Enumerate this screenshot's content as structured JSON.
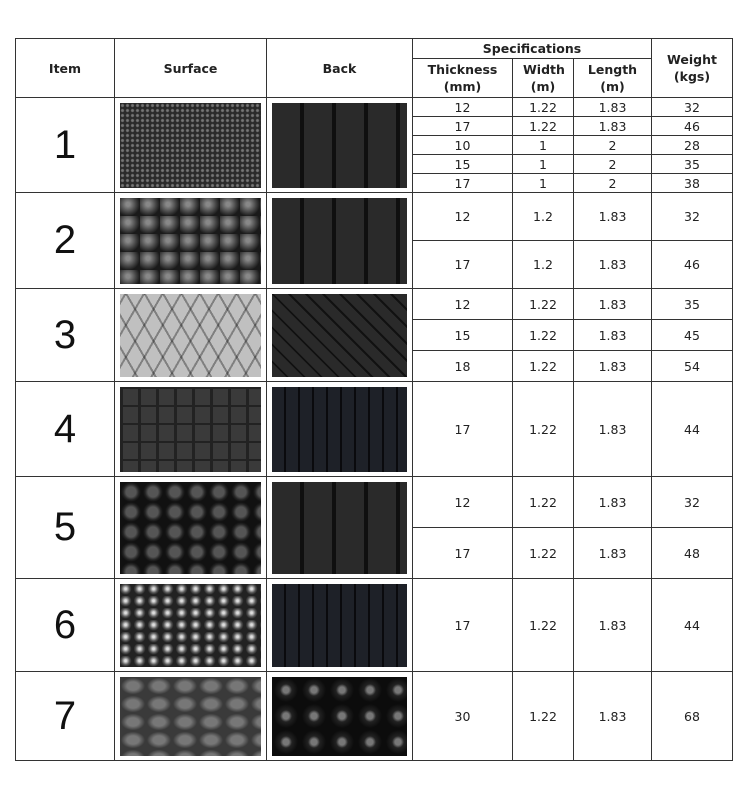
{
  "headers": {
    "item": "Item",
    "surface": "Surface",
    "back": "Back",
    "specifications": "Specifications",
    "thickness": "Thickness (mm)",
    "width": "Width (m)",
    "length": "Length (m)",
    "weight": "Weight (kgs)"
  },
  "items": [
    {
      "item": "1",
      "surface_image": "studded-diamond-surface",
      "back_image": "grooved-back",
      "specs": [
        [
          "12",
          "1.22",
          "1.83",
          "32"
        ],
        [
          "17",
          "1.22",
          "1.83",
          "46"
        ],
        [
          "10",
          "1",
          "2",
          "28"
        ],
        [
          "15",
          "1",
          "2",
          "35"
        ],
        [
          "17",
          "1",
          "2",
          "38"
        ]
      ]
    },
    {
      "item": "2",
      "surface_image": "hammer-surface",
      "back_image": "grooved-back",
      "specs": [
        [
          "12",
          "1.2",
          "1.83",
          "32"
        ],
        [
          "17",
          "1.2",
          "1.83",
          "46"
        ]
      ]
    },
    {
      "item": "3",
      "surface_image": "diamond-surface",
      "back_image": "diamond-back",
      "specs": [
        [
          "12",
          "1.22",
          "1.83",
          "35"
        ],
        [
          "15",
          "1.22",
          "1.83",
          "45"
        ],
        [
          "18",
          "1.22",
          "1.83",
          "54"
        ]
      ]
    },
    {
      "item": "4",
      "surface_image": "square-block-surface",
      "back_image": "fine-groove-back",
      "specs": [
        [
          "17",
          "1.22",
          "1.83",
          "44"
        ]
      ]
    },
    {
      "item": "5",
      "surface_image": "hexagon-surface",
      "back_image": "grooved-back",
      "specs": [
        [
          "12",
          "1.22",
          "1.83",
          "32"
        ],
        [
          "17",
          "1.22",
          "1.83",
          "48"
        ]
      ]
    },
    {
      "item": "6",
      "surface_image": "dimpled-surface",
      "back_image": "fine-groove-back",
      "specs": [
        [
          "17",
          "1.22",
          "1.83",
          "44"
        ]
      ]
    },
    {
      "item": "7",
      "surface_image": "pebble-surface",
      "back_image": "hex-socket-back",
      "specs": [
        [
          "30",
          "1.22",
          "1.83",
          "68"
        ]
      ]
    }
  ]
}
